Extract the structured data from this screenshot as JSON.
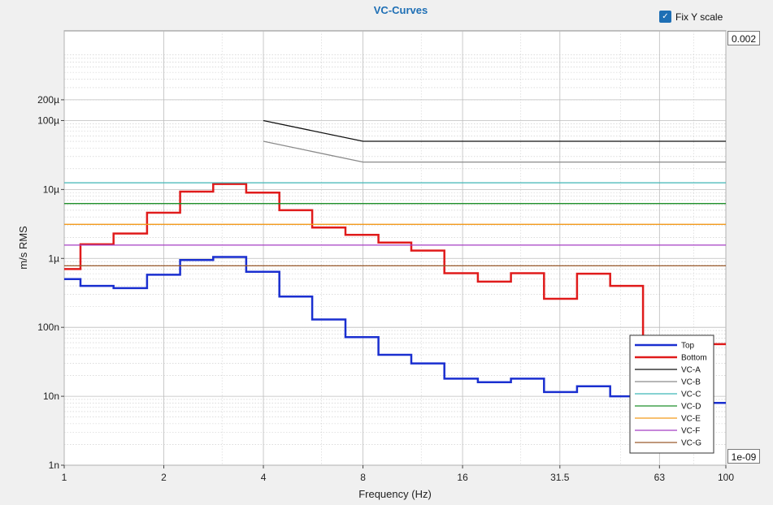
{
  "fix_y_scale": {
    "label": "Fix Y scale",
    "checked": true
  },
  "y_max_field": "0.002",
  "y_min_field": "1e-09",
  "chart_data": {
    "type": "line",
    "title": "VC-Curves",
    "xlabel": "Frequency (Hz)",
    "ylabel": "m/s RMS",
    "x_scale": "log2",
    "y_scale": "log10",
    "xlim": [
      1,
      100
    ],
    "ylim": [
      1e-09,
      0.002
    ],
    "grid": true,
    "legend_position": "bottom-right",
    "x_ticks": [
      1,
      2,
      4,
      8,
      16,
      31.5,
      63,
      100
    ],
    "x_tick_labels": [
      "1",
      "2",
      "4",
      "8",
      "16",
      "31.5",
      "63",
      "100"
    ],
    "y_ticks": [
      1e-09,
      1e-08,
      1e-07,
      1e-06,
      1e-05,
      0.0001,
      0.0002
    ],
    "y_tick_labels": [
      "1n",
      "10n",
      "100n",
      "1µ",
      "10µ",
      "100µ",
      "200µ"
    ],
    "series": [
      {
        "name": "Top",
        "color": "#1a2fd0",
        "width": 2.5,
        "style": "step",
        "edges": [
          1,
          1.12,
          1.41,
          1.78,
          2.24,
          2.82,
          3.55,
          4.47,
          5.62,
          7.08,
          8.91,
          11.2,
          14.1,
          17.8,
          22.4,
          28.2,
          35.5,
          44.7,
          56.2,
          70.8,
          100
        ],
        "values": [
          5e-07,
          4e-07,
          3.7e-07,
          5.8e-07,
          9.5e-07,
          1.05e-06,
          6.4e-07,
          2.8e-07,
          1.3e-07,
          7.2e-08,
          4e-08,
          3e-08,
          1.8e-08,
          1.6e-08,
          1.8e-08,
          1.15e-08,
          1.4e-08,
          1e-08,
          8e-09,
          8e-09
        ]
      },
      {
        "name": "Bottom",
        "color": "#e01b1b",
        "width": 2.5,
        "style": "step",
        "edges": [
          1,
          1.12,
          1.41,
          1.78,
          2.24,
          2.82,
          3.55,
          4.47,
          5.62,
          7.08,
          8.91,
          11.2,
          14.1,
          17.8,
          22.4,
          28.2,
          35.5,
          44.7,
          56.2,
          70.8,
          100
        ],
        "values": [
          7e-07,
          1.6e-06,
          2.3e-06,
          4.6e-06,
          9.3e-06,
          1.2e-05,
          9e-06,
          5e-06,
          2.8e-06,
          2.2e-06,
          1.7e-06,
          1.3e-06,
          6.1e-07,
          4.6e-07,
          6.1e-07,
          2.6e-07,
          6e-07,
          4e-07,
          5.7e-08,
          5.7e-08
        ]
      },
      {
        "name": "VC-A",
        "color": "#111111",
        "width": 1.3,
        "points": [
          [
            4,
            0.0001
          ],
          [
            8,
            5e-05
          ],
          [
            100,
            5e-05
          ]
        ]
      },
      {
        "name": "VC-B",
        "color": "#8a8a8a",
        "width": 1.3,
        "points": [
          [
            4,
            5e-05
          ],
          [
            8,
            2.5e-05
          ],
          [
            100,
            2.5e-05
          ]
        ]
      },
      {
        "name": "VC-C",
        "color": "#3fb6b6",
        "width": 1.3,
        "points": [
          [
            1,
            1.25e-05
          ],
          [
            100,
            1.25e-05
          ]
        ]
      },
      {
        "name": "VC-D",
        "color": "#1f8f2a",
        "width": 1.3,
        "points": [
          [
            1,
            6.25e-06
          ],
          [
            100,
            6.25e-06
          ]
        ]
      },
      {
        "name": "VC-E",
        "color": "#f39a1b",
        "width": 1.3,
        "points": [
          [
            1,
            3.12e-06
          ],
          [
            100,
            3.12e-06
          ]
        ]
      },
      {
        "name": "VC-F",
        "color": "#a53fc4",
        "width": 1.3,
        "points": [
          [
            1,
            1.56e-06
          ],
          [
            100,
            1.56e-06
          ]
        ]
      },
      {
        "name": "VC-G",
        "color": "#9a5a2c",
        "width": 1.3,
        "points": [
          [
            1,
            7.8e-07
          ],
          [
            100,
            7.8e-07
          ]
        ]
      }
    ]
  }
}
